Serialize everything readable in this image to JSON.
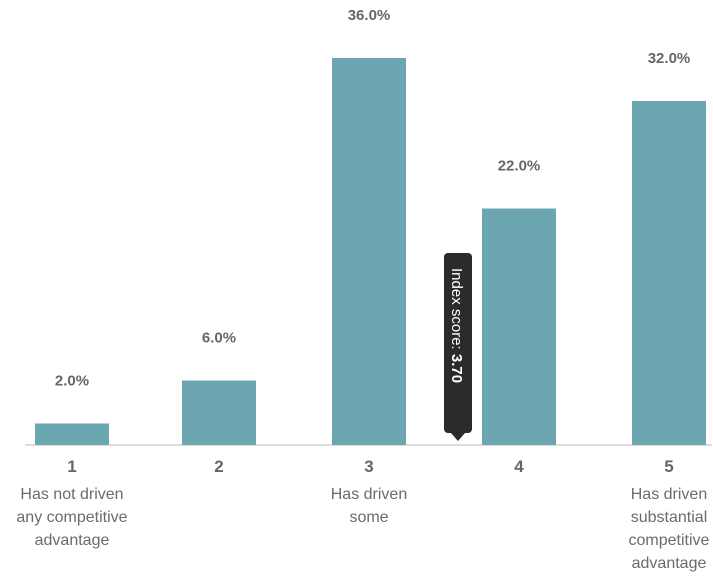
{
  "chart_data": {
    "type": "bar",
    "categories": [
      "1",
      "2",
      "3",
      "4",
      "5"
    ],
    "category_descriptions": [
      [
        "Has not driven",
        "any competitive",
        "advantage"
      ],
      [],
      [
        "Has driven",
        "some"
      ],
      [],
      [
        "Has driven",
        "substantial",
        "competitive",
        "advantage"
      ]
    ],
    "values": [
      2.0,
      6.0,
      36.0,
      22.0,
      32.0
    ],
    "data_labels": [
      "2.0%",
      "6.0%",
      "36.0%",
      "22.0%",
      "32.0%"
    ],
    "value_unit": "%",
    "ylim": [
      0,
      36
    ],
    "grid": false,
    "colors": {
      "bar": "#6ba6b1",
      "label": "#666666",
      "tooltip": "#2b2b2b"
    },
    "annotation": {
      "label": "Index score:",
      "value": "3.70",
      "position_value": 3.7
    }
  }
}
